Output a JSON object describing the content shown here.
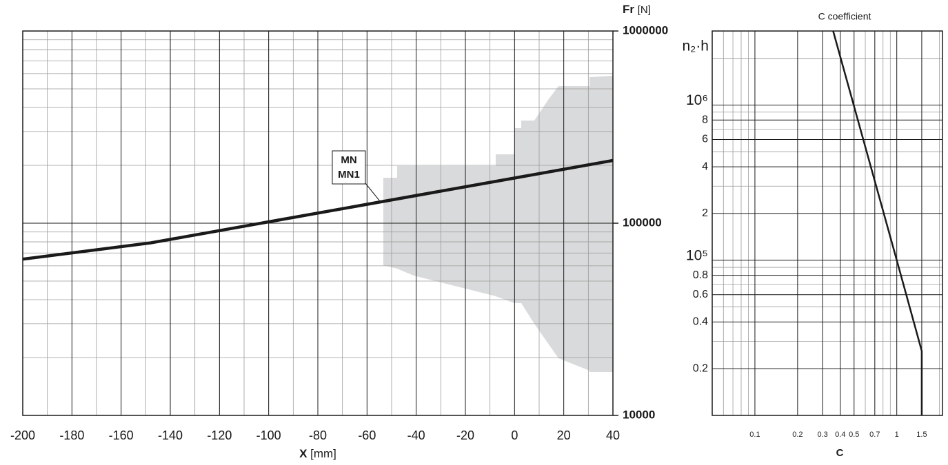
{
  "chart_data": [
    {
      "type": "line",
      "x_label_symbol": "X",
      "x_label_unit": "[mm]",
      "y_label_symbol": "Fr",
      "y_label_unit": "[N]",
      "x": [
        -200,
        -148,
        40
      ],
      "series": [
        {
          "color": "#1a1a1a",
          "values": [
            65000,
            79000,
            212000
          ]
        }
      ],
      "annotations": [
        "MN",
        "MN1"
      ],
      "xlim": [
        -200,
        40
      ],
      "xticks": [
        -200,
        -180,
        -160,
        -140,
        -120,
        -100,
        -80,
        -60,
        -40,
        -20,
        0,
        20,
        40
      ],
      "ylim": [
        10000,
        1000000
      ],
      "yticks": [
        10000,
        100000,
        1000000
      ],
      "log_y": true,
      "grid": true
    },
    {
      "type": "line",
      "title": "C coefficient",
      "x_label": "C",
      "y_label": "n₂·h",
      "x": [
        0.356,
        1,
        1.5,
        1.5
      ],
      "series": [
        {
          "color": "#1a1a1a",
          "values": [
            3000000,
            100000,
            26000,
            10000
          ]
        }
      ],
      "xlim": [
        0.05,
        2.1
      ],
      "xticks": [
        0.1,
        0.2,
        0.3,
        0.4,
        0.5,
        0.7,
        1,
        1.5
      ],
      "log_x": true,
      "ylim": [
        10000,
        3000000
      ],
      "yticks": [
        {
          "value": 20000,
          "label": "0.2"
        },
        {
          "value": 40000,
          "label": "0.4"
        },
        {
          "value": 60000,
          "label": "0.6"
        },
        {
          "value": 80000,
          "label": "0.8"
        },
        {
          "value": 100000,
          "label": "10⁵"
        },
        {
          "value": 200000,
          "label": "2"
        },
        {
          "value": 400000,
          "label": "4"
        },
        {
          "value": 600000,
          "label": "6"
        },
        {
          "value": 800000,
          "label": "8"
        },
        {
          "value": 1000000,
          "label": "10⁶"
        }
      ],
      "log_y": true,
      "grid": true
    }
  ]
}
